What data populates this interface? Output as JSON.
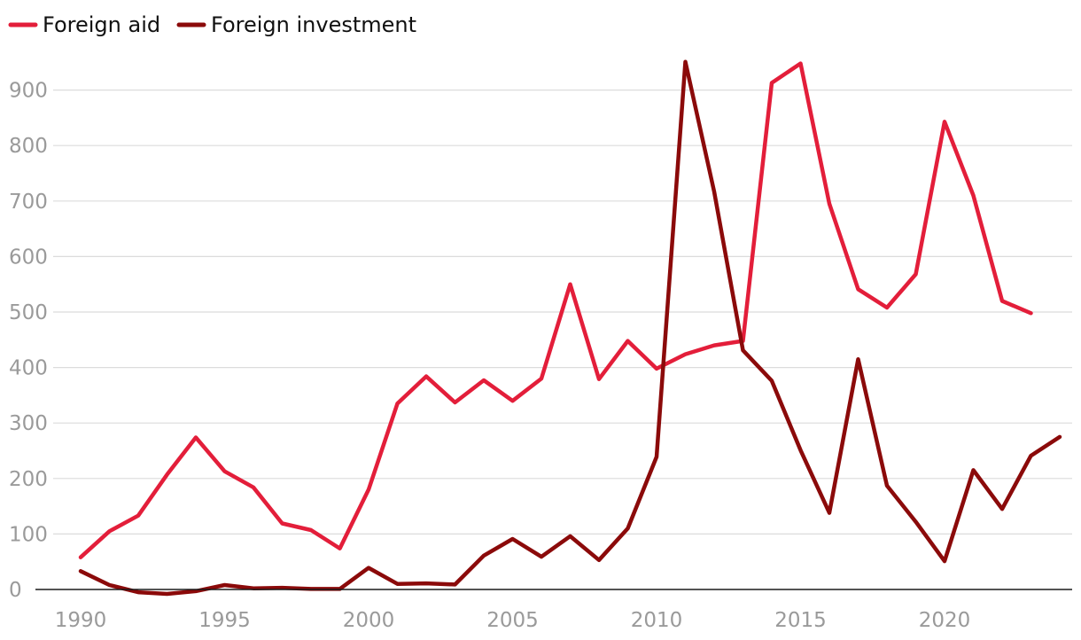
{
  "chart_data": {
    "type": "line",
    "title": "",
    "xlabel": "",
    "ylabel": "",
    "xlim": [
      1990,
      2024
    ],
    "ylim": [
      0,
      950
    ],
    "grid": true,
    "legend_position": "top-left",
    "x_ticks": [
      1990,
      1995,
      2000,
      2005,
      2010,
      2015,
      2020
    ],
    "x_tick_labels": [
      "1990",
      "1995",
      "2000",
      "2005",
      "2010",
      "2015",
      "2020"
    ],
    "y_ticks": [
      0,
      100,
      200,
      300,
      400,
      500,
      600,
      700,
      800,
      900
    ],
    "y_tick_labels": [
      "0",
      "100",
      "200",
      "300",
      "400",
      "500",
      "600",
      "700",
      "800",
      "900"
    ],
    "series": [
      {
        "name": "Foreign aid",
        "color": "#e31e3a",
        "x": [
          1990,
          1991,
          1992,
          1993,
          1994,
          1995,
          1996,
          1997,
          1998,
          1999,
          2000,
          2001,
          2002,
          2003,
          2004,
          2005,
          2006,
          2007,
          2008,
          2009,
          2010,
          2011,
          2012,
          2013,
          2014,
          2015,
          2016,
          2017,
          2018,
          2019,
          2020,
          2021,
          2022,
          2023
        ],
        "values": [
          58,
          105,
          133,
          207,
          274,
          213,
          184,
          119,
          107,
          74,
          180,
          335,
          384,
          337,
          377,
          340,
          380,
          550,
          379,
          448,
          398,
          424,
          440,
          448,
          913,
          948,
          695,
          541,
          508,
          568,
          843,
          710,
          520,
          498
        ]
      },
      {
        "name": "Foreign investment",
        "color": "#8b0a0a",
        "x": [
          1990,
          1991,
          1992,
          1993,
          1994,
          1995,
          1996,
          1997,
          1998,
          1999,
          2000,
          2001,
          2002,
          2003,
          2004,
          2005,
          2006,
          2007,
          2008,
          2009,
          2010,
          2011,
          2012,
          2013,
          2014,
          2015,
          2016,
          2017,
          2018,
          2019,
          2020,
          2021,
          2022,
          2023,
          2024
        ],
        "values": [
          33,
          8,
          -5,
          -8,
          -3,
          8,
          2,
          3,
          1,
          1,
          39,
          10,
          11,
          9,
          61,
          91,
          59,
          96,
          53,
          110,
          239,
          951,
          717,
          431,
          376,
          251,
          138,
          415,
          187,
          122,
          51,
          215,
          145,
          241,
          275
        ]
      }
    ]
  }
}
